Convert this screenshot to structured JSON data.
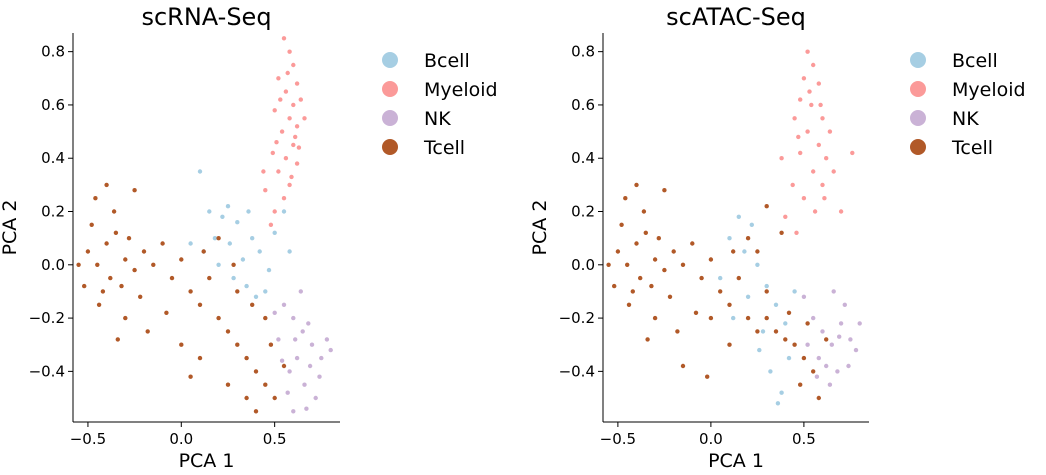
{
  "legend_colors": {
    "Bcell": "#a6cee3",
    "Myeloid": "#fb9a99",
    "NK": "#cab2d6",
    "Tcell": "#b15928"
  },
  "chart_data": [
    {
      "type": "scatter",
      "title": "scRNA-Seq",
      "xlabel": "PCA 1",
      "ylabel": "PCA 2",
      "xlim": [
        -0.58,
        0.85
      ],
      "ylim": [
        -0.59,
        0.87
      ],
      "xticks": [
        -0.5,
        0.0,
        0.5
      ],
      "xtick_labels": [
        "−0.5",
        "0.0",
        "0.5"
      ],
      "yticks": [
        -0.4,
        -0.2,
        0.0,
        0.2,
        0.4,
        0.6,
        0.8
      ],
      "ytick_labels": [
        "−0.4",
        "−0.2",
        "0.0",
        "0.2",
        "0.4",
        "0.6",
        "0.8"
      ],
      "grid": false,
      "legend": {
        "placement": "outside-right",
        "entries": [
          "Bcell",
          "Myeloid",
          "NK",
          "Tcell"
        ]
      },
      "series": [
        {
          "name": "Bcell",
          "color": "#a6cee3",
          "points": [
            [
              0.15,
              0.2
            ],
            [
              0.22,
              0.18
            ],
            [
              0.3,
              0.16
            ],
            [
              0.38,
              0.1
            ],
            [
              0.42,
              0.05
            ],
            [
              0.12,
              0.05
            ],
            [
              0.2,
              0.0
            ],
            [
              0.28,
              -0.05
            ],
            [
              0.35,
              -0.08
            ],
            [
              0.45,
              -0.1
            ],
            [
              0.5,
              0.12
            ],
            [
              0.55,
              0.2
            ],
            [
              0.1,
              0.35
            ],
            [
              0.25,
              0.22
            ],
            [
              0.33,
              0.02
            ],
            [
              0.4,
              -0.12
            ],
            [
              0.47,
              -0.02
            ],
            [
              0.18,
              0.1
            ],
            [
              0.05,
              0.08
            ],
            [
              0.58,
              0.05
            ],
            [
              0.36,
              0.2
            ],
            [
              0.26,
              0.08
            ]
          ]
        },
        {
          "name": "Myeloid",
          "color": "#fb9a99",
          "points": [
            [
              0.55,
              0.85
            ],
            [
              0.58,
              0.8
            ],
            [
              0.6,
              0.75
            ],
            [
              0.52,
              0.7
            ],
            [
              0.62,
              0.68
            ],
            [
              0.56,
              0.65
            ],
            [
              0.6,
              0.6
            ],
            [
              0.5,
              0.58
            ],
            [
              0.58,
              0.55
            ],
            [
              0.62,
              0.52
            ],
            [
              0.54,
              0.5
            ],
            [
              0.6,
              0.45
            ],
            [
              0.56,
              0.4
            ],
            [
              0.62,
              0.38
            ],
            [
              0.52,
              0.35
            ],
            [
              0.58,
              0.3
            ],
            [
              0.55,
              0.25
            ],
            [
              0.5,
              0.2
            ],
            [
              0.48,
              0.15
            ],
            [
              0.45,
              0.28
            ],
            [
              0.64,
              0.62
            ],
            [
              0.53,
              0.62
            ],
            [
              0.57,
              0.72
            ],
            [
              0.61,
              0.48
            ],
            [
              0.49,
              0.42
            ],
            [
              0.66,
              0.55
            ],
            [
              0.44,
              0.35
            ],
            [
              0.59,
              0.33
            ],
            [
              0.51,
              0.46
            ],
            [
              0.63,
              0.44
            ]
          ]
        },
        {
          "name": "NK",
          "color": "#cab2d6",
          "points": [
            [
              0.55,
              -0.15
            ],
            [
              0.6,
              -0.2
            ],
            [
              0.65,
              -0.25
            ],
            [
              0.7,
              -0.3
            ],
            [
              0.62,
              -0.35
            ],
            [
              0.58,
              -0.4
            ],
            [
              0.66,
              -0.45
            ],
            [
              0.72,
              -0.5
            ],
            [
              0.6,
              -0.55
            ],
            [
              0.75,
              -0.35
            ],
            [
              0.68,
              -0.22
            ],
            [
              0.52,
              -0.28
            ],
            [
              0.64,
              -0.1
            ],
            [
              0.78,
              -0.28
            ],
            [
              0.57,
              -0.48
            ],
            [
              0.69,
              -0.38
            ],
            [
              0.61,
              -0.28
            ],
            [
              0.74,
              -0.42
            ],
            [
              0.54,
              -0.36
            ],
            [
              0.67,
              -0.54
            ],
            [
              0.8,
              -0.32
            ],
            [
              0.5,
              -0.18
            ]
          ]
        },
        {
          "name": "Tcell",
          "color": "#b15928",
          "points": [
            [
              -0.5,
              0.05
            ],
            [
              -0.45,
              0.0
            ],
            [
              -0.4,
              0.08
            ],
            [
              -0.38,
              -0.05
            ],
            [
              -0.35,
              0.12
            ],
            [
              -0.42,
              -0.1
            ],
            [
              -0.3,
              0.02
            ],
            [
              -0.32,
              -0.08
            ],
            [
              -0.48,
              0.15
            ],
            [
              -0.36,
              0.2
            ],
            [
              -0.44,
              -0.15
            ],
            [
              -0.28,
              0.1
            ],
            [
              -0.25,
              -0.02
            ],
            [
              -0.2,
              0.05
            ],
            [
              -0.22,
              -0.12
            ],
            [
              -0.15,
              0.0
            ],
            [
              -0.1,
              0.08
            ],
            [
              -0.05,
              -0.05
            ],
            [
              0.0,
              0.02
            ],
            [
              0.05,
              -0.1
            ],
            [
              0.1,
              -0.15
            ],
            [
              0.15,
              -0.05
            ],
            [
              0.2,
              -0.2
            ],
            [
              0.25,
              -0.25
            ],
            [
              0.3,
              -0.3
            ],
            [
              0.35,
              -0.35
            ],
            [
              0.4,
              -0.4
            ],
            [
              0.45,
              -0.45
            ],
            [
              0.5,
              -0.5
            ],
            [
              0.3,
              -0.1
            ],
            [
              0.2,
              0.1
            ],
            [
              -0.55,
              0.0
            ],
            [
              -0.52,
              -0.08
            ],
            [
              -0.46,
              0.25
            ],
            [
              -0.3,
              -0.2
            ],
            [
              -0.18,
              -0.25
            ],
            [
              0.0,
              -0.3
            ],
            [
              0.1,
              -0.35
            ],
            [
              0.25,
              -0.45
            ],
            [
              0.4,
              -0.55
            ],
            [
              0.45,
              -0.2
            ],
            [
              -0.4,
              0.3
            ],
            [
              -0.25,
              0.28
            ],
            [
              0.48,
              -0.3
            ],
            [
              0.35,
              -0.5
            ],
            [
              -0.08,
              -0.18
            ],
            [
              0.12,
              0.05
            ],
            [
              0.38,
              -0.15
            ],
            [
              0.55,
              -0.38
            ],
            [
              -0.34,
              -0.28
            ],
            [
              0.05,
              -0.42
            ],
            [
              0.28,
              0.0
            ]
          ]
        }
      ]
    },
    {
      "type": "scatter",
      "title": "scATAC-Seq",
      "xlabel": "PCA 1",
      "ylabel": "PCA 2",
      "xlim": [
        -0.58,
        0.85
      ],
      "ylim": [
        -0.59,
        0.87
      ],
      "xticks": [
        -0.5,
        0.0,
        0.5
      ],
      "xtick_labels": [
        "−0.5",
        "0.0",
        "0.5"
      ],
      "yticks": [
        -0.4,
        -0.2,
        0.0,
        0.2,
        0.4,
        0.6,
        0.8
      ],
      "ytick_labels": [
        "−0.4",
        "−0.2",
        "0.0",
        "0.2",
        "0.4",
        "0.6",
        "0.8"
      ],
      "grid": false,
      "legend": {
        "placement": "outside-right",
        "entries": [
          "Bcell",
          "Myeloid",
          "NK",
          "Tcell"
        ]
      },
      "series": [
        {
          "name": "Bcell",
          "color": "#a6cee3",
          "points": [
            [
              0.1,
              0.1
            ],
            [
              0.18,
              0.05
            ],
            [
              0.25,
              0.0
            ],
            [
              0.3,
              -0.08
            ],
            [
              0.35,
              -0.15
            ],
            [
              0.4,
              -0.22
            ],
            [
              0.2,
              -0.12
            ],
            [
              0.28,
              -0.25
            ],
            [
              0.32,
              -0.4
            ],
            [
              0.38,
              -0.48
            ],
            [
              0.42,
              -0.35
            ],
            [
              0.15,
              0.18
            ],
            [
              0.05,
              -0.05
            ],
            [
              0.45,
              -0.1
            ],
            [
              0.22,
              0.15
            ],
            [
              0.36,
              -0.52
            ],
            [
              0.12,
              -0.2
            ],
            [
              0.26,
              -0.32
            ]
          ]
        },
        {
          "name": "Myeloid",
          "color": "#fb9a99",
          "points": [
            [
              0.52,
              0.8
            ],
            [
              0.55,
              0.75
            ],
            [
              0.5,
              0.7
            ],
            [
              0.58,
              0.68
            ],
            [
              0.48,
              0.62
            ],
            [
              0.54,
              0.6
            ],
            [
              0.6,
              0.55
            ],
            [
              0.45,
              0.55
            ],
            [
              0.52,
              0.5
            ],
            [
              0.58,
              0.45
            ],
            [
              0.62,
              0.4
            ],
            [
              0.48,
              0.42
            ],
            [
              0.55,
              0.35
            ],
            [
              0.6,
              0.3
            ],
            [
              0.5,
              0.25
            ],
            [
              0.44,
              0.3
            ],
            [
              0.66,
              0.35
            ],
            [
              0.7,
              0.2
            ],
            [
              0.4,
              0.18
            ],
            [
              0.56,
              0.2
            ],
            [
              0.64,
              0.5
            ],
            [
              0.38,
              0.4
            ],
            [
              0.76,
              0.42
            ],
            [
              0.46,
              0.12
            ],
            [
              0.53,
              0.65
            ],
            [
              0.59,
              0.6
            ],
            [
              0.47,
              0.48
            ],
            [
              0.61,
              0.25
            ]
          ]
        },
        {
          "name": "NK",
          "color": "#cab2d6",
          "points": [
            [
              0.55,
              -0.2
            ],
            [
              0.6,
              -0.25
            ],
            [
              0.65,
              -0.3
            ],
            [
              0.7,
              -0.22
            ],
            [
              0.62,
              -0.38
            ],
            [
              0.58,
              -0.35
            ],
            [
              0.72,
              -0.15
            ],
            [
              0.75,
              -0.28
            ],
            [
              0.68,
              -0.4
            ],
            [
              0.52,
              -0.3
            ],
            [
              0.78,
              -0.32
            ],
            [
              0.5,
              -0.12
            ],
            [
              0.64,
              -0.45
            ],
            [
              0.8,
              -0.22
            ],
            [
              0.66,
              -0.1
            ],
            [
              0.74,
              -0.38
            ],
            [
              0.57,
              -0.42
            ],
            [
              0.69,
              -0.27
            ]
          ]
        },
        {
          "name": "Tcell",
          "color": "#b15928",
          "points": [
            [
              -0.5,
              0.05
            ],
            [
              -0.45,
              0.0
            ],
            [
              -0.4,
              0.08
            ],
            [
              -0.38,
              -0.05
            ],
            [
              -0.35,
              0.12
            ],
            [
              -0.42,
              -0.1
            ],
            [
              -0.3,
              0.02
            ],
            [
              -0.32,
              -0.08
            ],
            [
              -0.48,
              0.15
            ],
            [
              -0.36,
              0.2
            ],
            [
              -0.44,
              -0.15
            ],
            [
              -0.28,
              0.1
            ],
            [
              -0.25,
              -0.02
            ],
            [
              -0.2,
              0.05
            ],
            [
              -0.22,
              -0.12
            ],
            [
              -0.15,
              0.0
            ],
            [
              -0.1,
              0.08
            ],
            [
              -0.05,
              -0.05
            ],
            [
              0.0,
              0.02
            ],
            [
              0.05,
              -0.1
            ],
            [
              0.1,
              -0.15
            ],
            [
              0.15,
              -0.05
            ],
            [
              0.2,
              -0.2
            ],
            [
              0.25,
              -0.25
            ],
            [
              0.3,
              -0.2
            ],
            [
              0.35,
              -0.25
            ],
            [
              0.4,
              -0.28
            ],
            [
              0.45,
              -0.3
            ],
            [
              0.5,
              -0.35
            ],
            [
              0.55,
              -0.4
            ],
            [
              0.3,
              -0.1
            ],
            [
              0.2,
              0.1
            ],
            [
              -0.55,
              0.0
            ],
            [
              -0.52,
              -0.08
            ],
            [
              -0.46,
              0.25
            ],
            [
              -0.3,
              -0.2
            ],
            [
              -0.18,
              -0.25
            ],
            [
              0.0,
              -0.2
            ],
            [
              0.1,
              -0.3
            ],
            [
              0.38,
              0.12
            ],
            [
              -0.4,
              0.3
            ],
            [
              -0.25,
              0.28
            ],
            [
              0.48,
              -0.45
            ],
            [
              0.58,
              -0.5
            ],
            [
              -0.08,
              -0.18
            ],
            [
              0.12,
              0.05
            ],
            [
              0.42,
              -0.18
            ],
            [
              0.3,
              0.22
            ],
            [
              -0.34,
              -0.28
            ],
            [
              0.62,
              -0.28
            ],
            [
              -0.15,
              -0.38
            ],
            [
              0.25,
              0.05
            ],
            [
              0.52,
              -0.22
            ],
            [
              -0.02,
              -0.42
            ]
          ]
        }
      ]
    }
  ]
}
